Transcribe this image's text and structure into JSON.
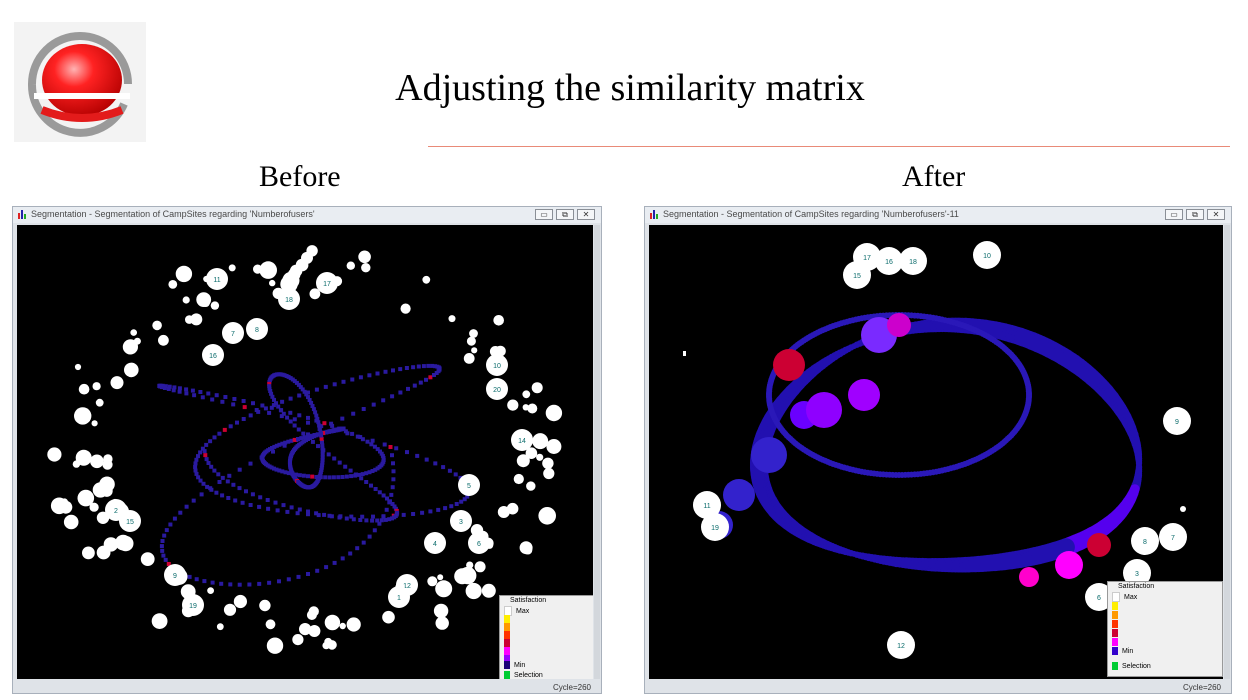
{
  "title": "Adjusting the similarity matrix",
  "captions": {
    "before": "Before",
    "after": "After"
  },
  "before_window": {
    "title": "Segmentation - Segmentation of CampSites regarding 'Numberofusers'",
    "buttons": [
      "▭",
      "⧉",
      "✕"
    ],
    "status": "Cycle=260",
    "node_labels": [
      "11",
      "18",
      "7",
      "8",
      "16",
      "17",
      "10",
      "20",
      "14",
      "5",
      "4",
      "6",
      "3",
      "12",
      "1",
      "9",
      "2",
      "15",
      "19"
    ]
  },
  "after_window": {
    "title": "Segmentation - Segmentation of CampSites regarding 'Numberofusers'-11",
    "buttons": [
      "▭",
      "⧉",
      "✕"
    ],
    "status": "Cycle=260",
    "node_labels": [
      "17",
      "16",
      "15",
      "18",
      "10",
      "9",
      "11",
      "19",
      "8",
      "7",
      "3",
      "6",
      "12"
    ]
  },
  "legend": {
    "title": "Satisfaction",
    "max_label": "Max",
    "min_label": "Min",
    "selection_label": "Selection",
    "colors": [
      "#ffffff",
      "#ffee00",
      "#ff9900",
      "#ff3300",
      "#cc0033",
      "#ff00ff",
      "#9900ff",
      "#3300cc",
      "#1a0077"
    ],
    "selection_color": "#00cc33"
  },
  "colors": {
    "accent_rule": "#e98a78",
    "logo_red": "#e31b1b",
    "logo_grey": "#9a9a9a"
  }
}
